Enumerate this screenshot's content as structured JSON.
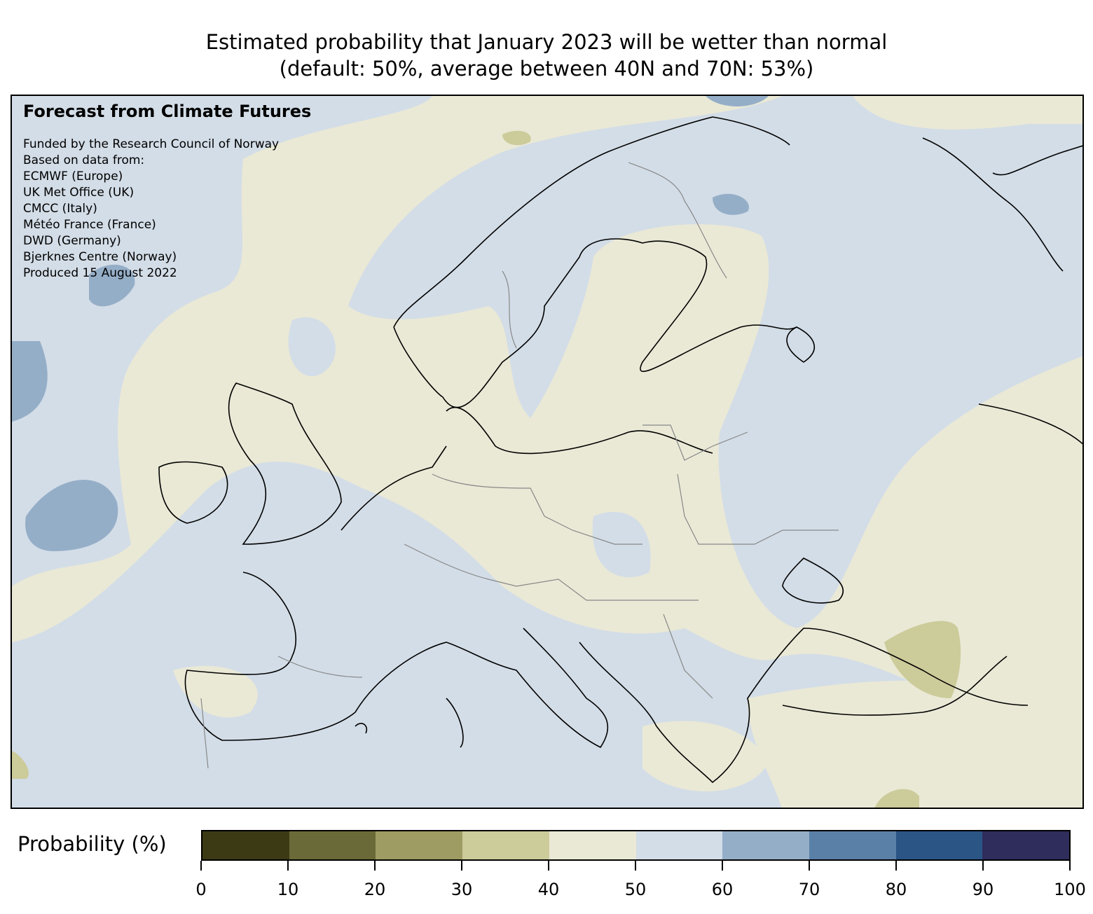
{
  "title": {
    "line1": "Estimated probability that January 2023 will be wetter than normal",
    "line2": "(default: 50%, average between 40N and 70N: 53%)"
  },
  "info": {
    "heading": "Forecast from Climate Futures",
    "lines": [
      "Funded by the Research Council of Norway",
      "Based on data from:",
      "ECMWF (Europe)",
      "UK Met Office (UK)",
      "CMCC (Italy)",
      "Météo France (France)",
      "DWD (Germany)",
      "Bjerknes Centre (Norway)",
      "Produced 15 August 2022"
    ]
  },
  "colorbar": {
    "label": "Probability (%)",
    "colors": [
      "#3b3a14",
      "#6a6a38",
      "#9e9c62",
      "#cccb9a",
      "#eae9d6",
      "#d3dde7",
      "#95aec8",
      "#5a80a7",
      "#2b5585",
      "#2e2d5c"
    ],
    "ticks": [
      "0",
      "10",
      "20",
      "30",
      "40",
      "50",
      "60",
      "70",
      "80",
      "90",
      "100"
    ]
  }
}
